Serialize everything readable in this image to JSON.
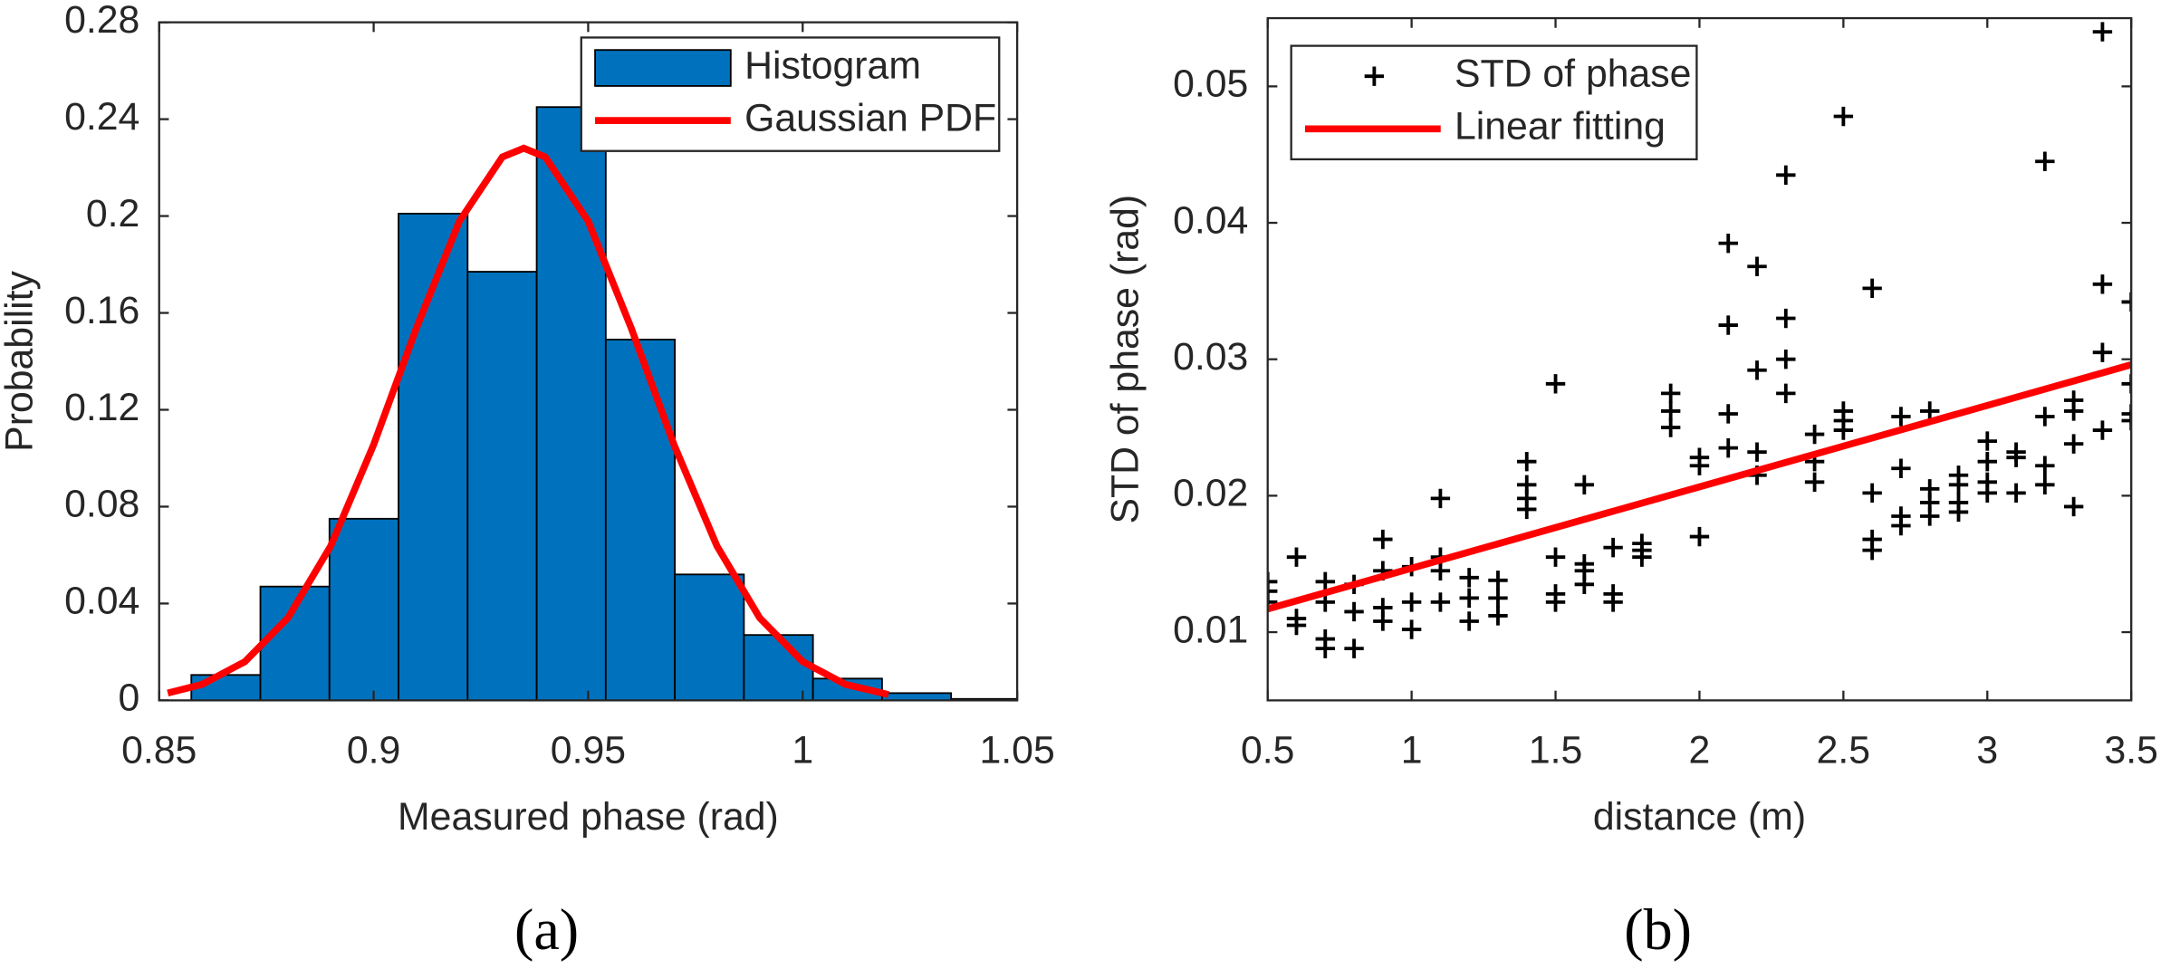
{
  "chart_data": [
    {
      "type": "histogram",
      "xlabel": "Measured phase (rad)",
      "ylabel": "Probability",
      "caption": "(a)",
      "xlim": [
        0.85,
        1.05
      ],
      "ylim": [
        0,
        0.28
      ],
      "xticks": [
        0.85,
        0.9,
        0.95,
        1,
        1.05
      ],
      "yticks": [
        0,
        0.04,
        0.08,
        0.12,
        0.16,
        0.2,
        0.24,
        0.28
      ],
      "legend": "top-right",
      "bins": [
        0.8575,
        0.8736,
        0.8897,
        0.9058,
        0.9219,
        0.938,
        0.9541,
        0.9702,
        0.9863,
        1.0024,
        1.0185,
        1.0346,
        1.0507
      ],
      "series": [
        {
          "name": "Histogram",
          "type": "histogram",
          "color": "#0072bd",
          "values": [
            0.0105,
            0.047,
            0.075,
            0.201,
            0.177,
            0.245,
            0.149,
            0.052,
            0.027,
            0.009,
            0.003,
            0.0006
          ]
        },
        {
          "name": "Gaussian PDF",
          "type": "line",
          "color": "#ff0000",
          "x": [
            0.852,
            0.86,
            0.87,
            0.88,
            0.89,
            0.9,
            0.91,
            0.92,
            0.93,
            0.935,
            0.94,
            0.95,
            0.96,
            0.97,
            0.98,
            0.99,
            1.0,
            1.01,
            1.02
          ],
          "values": [
            0.003,
            0.0066,
            0.016,
            0.034,
            0.0638,
            0.1056,
            0.1539,
            0.1979,
            0.2244,
            0.228,
            0.2244,
            0.1979,
            0.1539,
            0.1056,
            0.0638,
            0.034,
            0.016,
            0.0066,
            0.0024
          ]
        }
      ]
    },
    {
      "type": "scatter",
      "xlabel": "distance (m)",
      "ylabel": "STD of phase (rad)",
      "caption": "(b)",
      "xlim": [
        0.5,
        3.5
      ],
      "ylim": [
        0.005,
        0.055
      ],
      "xticks": [
        0.5,
        1,
        1.5,
        2,
        2.5,
        3,
        3.5
      ],
      "yticks": [
        0.01,
        0.02,
        0.03,
        0.04,
        0.05
      ],
      "legend": "top-left",
      "series": [
        {
          "name": "STD of phase",
          "type": "scatter",
          "color": "#000000",
          "x": [
            0.5,
            0.5,
            0.5,
            0.6,
            0.6,
            0.6,
            0.7,
            0.7,
            0.7,
            0.7,
            0.8,
            0.8,
            0.8,
            0.9,
            0.9,
            0.9,
            0.9,
            1.0,
            1.0,
            1.0,
            1.1,
            1.1,
            1.1,
            1.1,
            1.2,
            1.2,
            1.2,
            1.3,
            1.3,
            1.3,
            1.4,
            1.4,
            1.4,
            1.4,
            1.5,
            1.5,
            1.5,
            1.5,
            1.6,
            1.6,
            1.6,
            1.6,
            1.7,
            1.7,
            1.7,
            1.8,
            1.8,
            1.8,
            1.9,
            1.9,
            1.9,
            2.0,
            2.0,
            2.0,
            2.1,
            2.1,
            2.1,
            2.1,
            2.2,
            2.2,
            2.2,
            2.2,
            2.3,
            2.3,
            2.3,
            2.3,
            2.4,
            2.4,
            2.4,
            2.5,
            2.5,
            2.5,
            2.5,
            2.6,
            2.6,
            2.6,
            2.6,
            2.7,
            2.7,
            2.7,
            2.7,
            2.8,
            2.8,
            2.8,
            2.8,
            2.9,
            2.9,
            2.9,
            2.9,
            3.0,
            3.0,
            3.0,
            3.0,
            3.1,
            3.1,
            3.1,
            3.2,
            3.2,
            3.2,
            3.2,
            3.3,
            3.3,
            3.3,
            3.3,
            3.4,
            3.4,
            3.4,
            3.4,
            3.5,
            3.5,
            3.5,
            3.5
          ],
          "values": [
            0.013,
            0.0122,
            0.0137,
            0.0155,
            0.011,
            0.0105,
            0.0137,
            0.0122,
            0.0095,
            0.0088,
            0.0135,
            0.0115,
            0.0088,
            0.0168,
            0.0145,
            0.0118,
            0.0108,
            0.0148,
            0.0122,
            0.0102,
            0.0198,
            0.0155,
            0.0145,
            0.0122,
            0.014,
            0.0125,
            0.0108,
            0.0138,
            0.0125,
            0.0112,
            0.0225,
            0.0208,
            0.0198,
            0.019,
            0.0282,
            0.0155,
            0.0128,
            0.0122,
            0.0208,
            0.015,
            0.0145,
            0.0135,
            0.0162,
            0.0128,
            0.0122,
            0.0165,
            0.016,
            0.0155,
            0.0275,
            0.0262,
            0.025,
            0.0228,
            0.0222,
            0.017,
            0.0385,
            0.0325,
            0.026,
            0.0235,
            0.0368,
            0.0292,
            0.0232,
            0.0215,
            0.0435,
            0.033,
            0.03,
            0.0275,
            0.0245,
            0.0225,
            0.021,
            0.0478,
            0.0262,
            0.0255,
            0.0248,
            0.0352,
            0.0202,
            0.0168,
            0.016,
            0.0258,
            0.022,
            0.0185,
            0.0178,
            0.0262,
            0.0205,
            0.0195,
            0.0185,
            0.0215,
            0.0208,
            0.0195,
            0.0188,
            0.024,
            0.0225,
            0.021,
            0.0202,
            0.0232,
            0.0228,
            0.0202,
            0.0445,
            0.0258,
            0.0222,
            0.0208,
            0.027,
            0.0262,
            0.0238,
            0.0192,
            0.054,
            0.0355,
            0.0305,
            0.0248,
            0.0342,
            0.0282,
            0.026,
            0.0255
          ]
        },
        {
          "name": "Linear fitting",
          "type": "line",
          "color": "#ff0000",
          "x": [
            0.5,
            3.5
          ],
          "values": [
            0.0117,
            0.0296
          ]
        }
      ]
    }
  ]
}
